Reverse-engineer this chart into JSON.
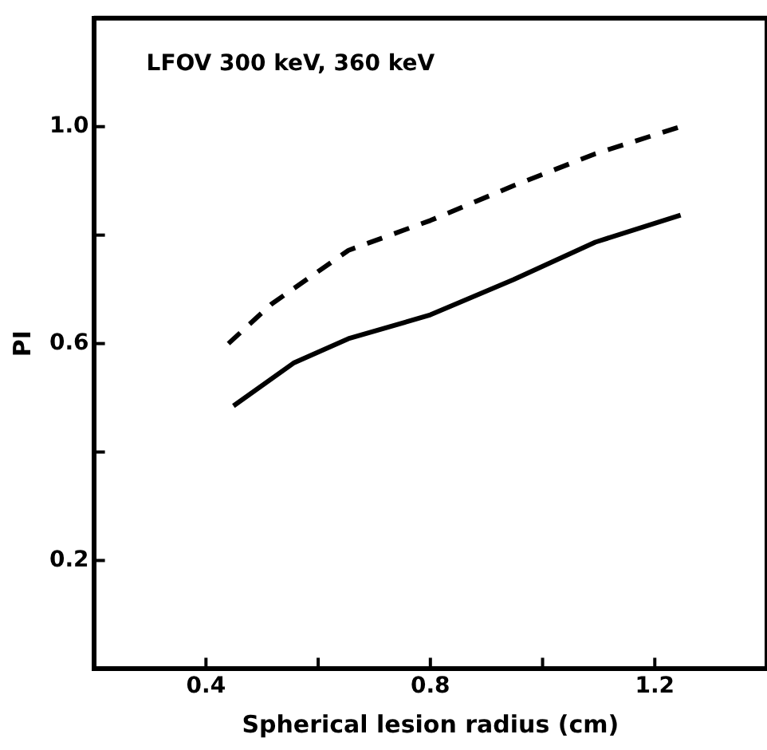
{
  "chart_data": {
    "type": "line",
    "xlabel": "Spherical lesion radius (cm)",
    "ylabel": "PI",
    "annotations": [
      "LFOV 300 keV, 360 keV"
    ],
    "xlim": [
      0.2,
      1.4
    ],
    "xticks": [
      0.4,
      {
        "value": 0.6,
        "label": null
      },
      0.8,
      {
        "value": 1.0,
        "label": null
      },
      1.2
    ],
    "ylim": [
      0,
      1.2
    ],
    "yticks": [
      0.2,
      {
        "value": 0.4,
        "label": null
      },
      0.6,
      {
        "value": 0.8,
        "label": null
      },
      {
        "value": 1.0,
        "label": "1.0"
      }
    ],
    "grid": false,
    "legend": false,
    "marker": "none",
    "series": [
      {
        "color": "#000000",
        "line_style": "dashed",
        "x": [
          0.44,
          0.517,
          0.654,
          0.8,
          0.948,
          1.094,
          1.246
        ],
        "values": [
          0.6,
          0.673,
          0.772,
          0.827,
          0.891,
          0.95,
          1.0
        ]
      },
      {
        "color": "#000000",
        "line_style": "solid",
        "x": [
          0.449,
          0.556,
          0.654,
          0.8,
          0.948,
          1.094,
          1.246
        ],
        "values": [
          0.485,
          0.564,
          0.609,
          0.653,
          0.718,
          0.787,
          0.837
        ]
      }
    ]
  }
}
